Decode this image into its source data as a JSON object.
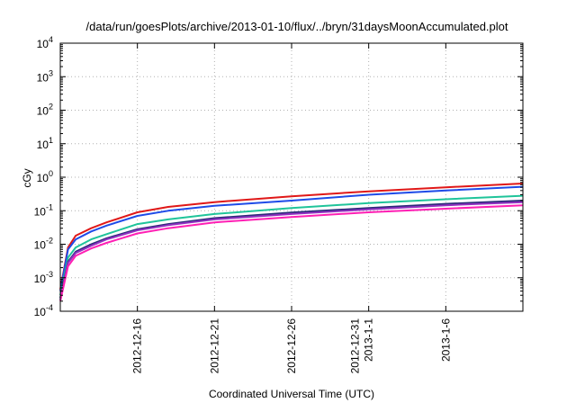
{
  "chart_data": {
    "type": "line",
    "title": "/data/run/goesPlots/archive/2013-01-10/flux/../bryn/31daysMoonAccumulated.plot",
    "xlabel": "Coordinated Universal Time (UTC)",
    "ylabel": "cGy",
    "yscale": "log",
    "ylim": [
      0.0001,
      10000
    ],
    "y_ticks": [
      {
        "base": "10",
        "exp": "-4"
      },
      {
        "base": "10",
        "exp": "-3"
      },
      {
        "base": "10",
        "exp": "-2"
      },
      {
        "base": "10",
        "exp": "-1"
      },
      {
        "base": "10",
        "exp": "0"
      },
      {
        "base": "10",
        "exp": "1"
      },
      {
        "base": "10",
        "exp": "2"
      },
      {
        "base": "10",
        "exp": "3"
      },
      {
        "base": "10",
        "exp": "4"
      }
    ],
    "xlim": [
      "2012-12-11",
      "2013-01-10"
    ],
    "x_ticks": [
      {
        "date": "2012-12-16",
        "label": [
          "2012-12-16"
        ]
      },
      {
        "date": "2012-12-21",
        "label": [
          "2012-12-21"
        ]
      },
      {
        "date": "2012-12-26",
        "label": [
          "2012-12-26"
        ]
      },
      {
        "date": "2012-12-31",
        "label": [
          "2012-12-31",
          "2013-1-1"
        ]
      },
      {
        "date": "2013-01-05",
        "label": [
          "2013-1-6"
        ]
      }
    ],
    "grid": true,
    "legend": "none",
    "series": [
      {
        "color": "#e01818",
        "x": [
          "2012-12-11",
          "2012-12-11T12:00",
          "2012-12-12",
          "2012-12-13",
          "2012-12-14",
          "2012-12-16",
          "2012-12-18",
          "2012-12-21",
          "2012-12-26",
          "2012-12-31",
          "2013-01-05",
          "2013-01-10"
        ],
        "y": [
          0.00045,
          0.008,
          0.018,
          0.03,
          0.045,
          0.09,
          0.13,
          0.18,
          0.27,
          0.38,
          0.5,
          0.65
        ]
      },
      {
        "color": "#1e4be8",
        "x": [
          "2012-12-11",
          "2012-12-11T12:00",
          "2012-12-12",
          "2012-12-13",
          "2012-12-14",
          "2012-12-16",
          "2012-12-18",
          "2012-12-21",
          "2012-12-26",
          "2012-12-31",
          "2013-01-05",
          "2013-01-10"
        ],
        "y": [
          0.0004,
          0.007,
          0.014,
          0.024,
          0.036,
          0.07,
          0.1,
          0.14,
          0.2,
          0.3,
          0.4,
          0.52
        ]
      },
      {
        "color": "#1fc49a",
        "x": [
          "2012-12-11",
          "2012-12-11T12:00",
          "2012-12-12",
          "2012-12-13",
          "2012-12-14",
          "2012-12-16",
          "2012-12-18",
          "2012-12-21",
          "2012-12-26",
          "2012-12-31",
          "2013-01-05",
          "2013-01-10"
        ],
        "y": [
          0.0003,
          0.004,
          0.008,
          0.014,
          0.02,
          0.04,
          0.055,
          0.08,
          0.12,
          0.17,
          0.22,
          0.28
        ]
      },
      {
        "color": "#2a2a78",
        "x": [
          "2012-12-11",
          "2012-12-11T12:00",
          "2012-12-12",
          "2012-12-13",
          "2012-12-14",
          "2012-12-16",
          "2012-12-18",
          "2012-12-21",
          "2012-12-26",
          "2012-12-31",
          "2013-01-05",
          "2013-01-10"
        ],
        "y": [
          0.00025,
          0.003,
          0.006,
          0.01,
          0.015,
          0.028,
          0.04,
          0.06,
          0.088,
          0.12,
          0.16,
          0.2
        ]
      },
      {
        "color": "#9030c0",
        "x": [
          "2012-12-11",
          "2012-12-11T12:00",
          "2012-12-12",
          "2012-12-13",
          "2012-12-14",
          "2012-12-16",
          "2012-12-18",
          "2012-12-21",
          "2012-12-26",
          "2012-12-31",
          "2013-01-05",
          "2013-01-10"
        ],
        "y": [
          0.00022,
          0.0028,
          0.0055,
          0.009,
          0.014,
          0.026,
          0.037,
          0.055,
          0.08,
          0.11,
          0.145,
          0.18
        ]
      },
      {
        "color": "#ff1fb4",
        "x": [
          "2012-12-11",
          "2012-12-11T12:00",
          "2012-12-12",
          "2012-12-13",
          "2012-12-14",
          "2012-12-16",
          "2012-12-18",
          "2012-12-21",
          "2012-12-26",
          "2012-12-31",
          "2013-01-05",
          "2013-01-10"
        ],
        "y": [
          0.0002,
          0.0022,
          0.0045,
          0.0075,
          0.011,
          0.021,
          0.03,
          0.045,
          0.065,
          0.09,
          0.115,
          0.145
        ]
      }
    ]
  }
}
